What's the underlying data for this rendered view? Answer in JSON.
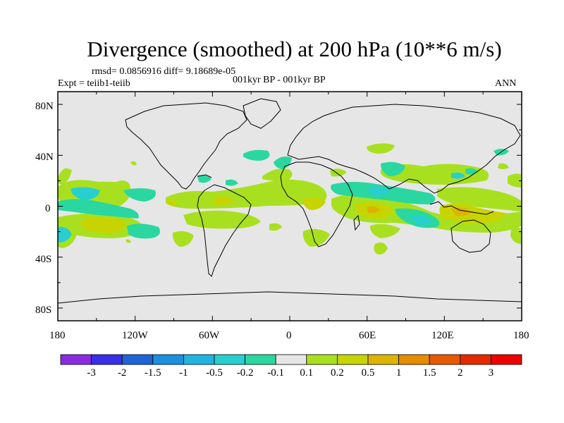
{
  "title": "Divergence (smoothed) at 200 hPa (10**6 m/s)",
  "stats_text": "rmsd= 0.0856916 diff= 9.18689e-05",
  "left_subtitle": "Expt = teiib1-teiib",
  "center_subtitle": "001kyr BP - 001kyr BP",
  "right_subtitle": "ANN",
  "lat_ticks": [
    "80N",
    "40N",
    "0",
    "40S",
    "80S"
  ],
  "lon_ticks": [
    "180",
    "120W",
    "60W",
    "0",
    "60E",
    "120E",
    "180"
  ],
  "colorbar": {
    "labels": [
      "-3",
      "-2",
      "-1.5",
      "-1",
      "-0.5",
      "-0.2",
      "-0.1",
      "0.1",
      "0.2",
      "0.5",
      "1",
      "1.5",
      "2",
      "3"
    ],
    "colors": [
      "#8a2be2",
      "#3a2ee8",
      "#1f63d8",
      "#1b8fe0",
      "#22b4e0",
      "#28cfd0",
      "#2ad7a0",
      "#e6e6e6",
      "#a8e020",
      "#c8d400",
      "#dcb400",
      "#e68c00",
      "#e65a00",
      "#e62a00",
      "#ee0000"
    ]
  },
  "colors": {
    "land_outline": "#000000",
    "neutral": "#e6e6e6"
  }
}
